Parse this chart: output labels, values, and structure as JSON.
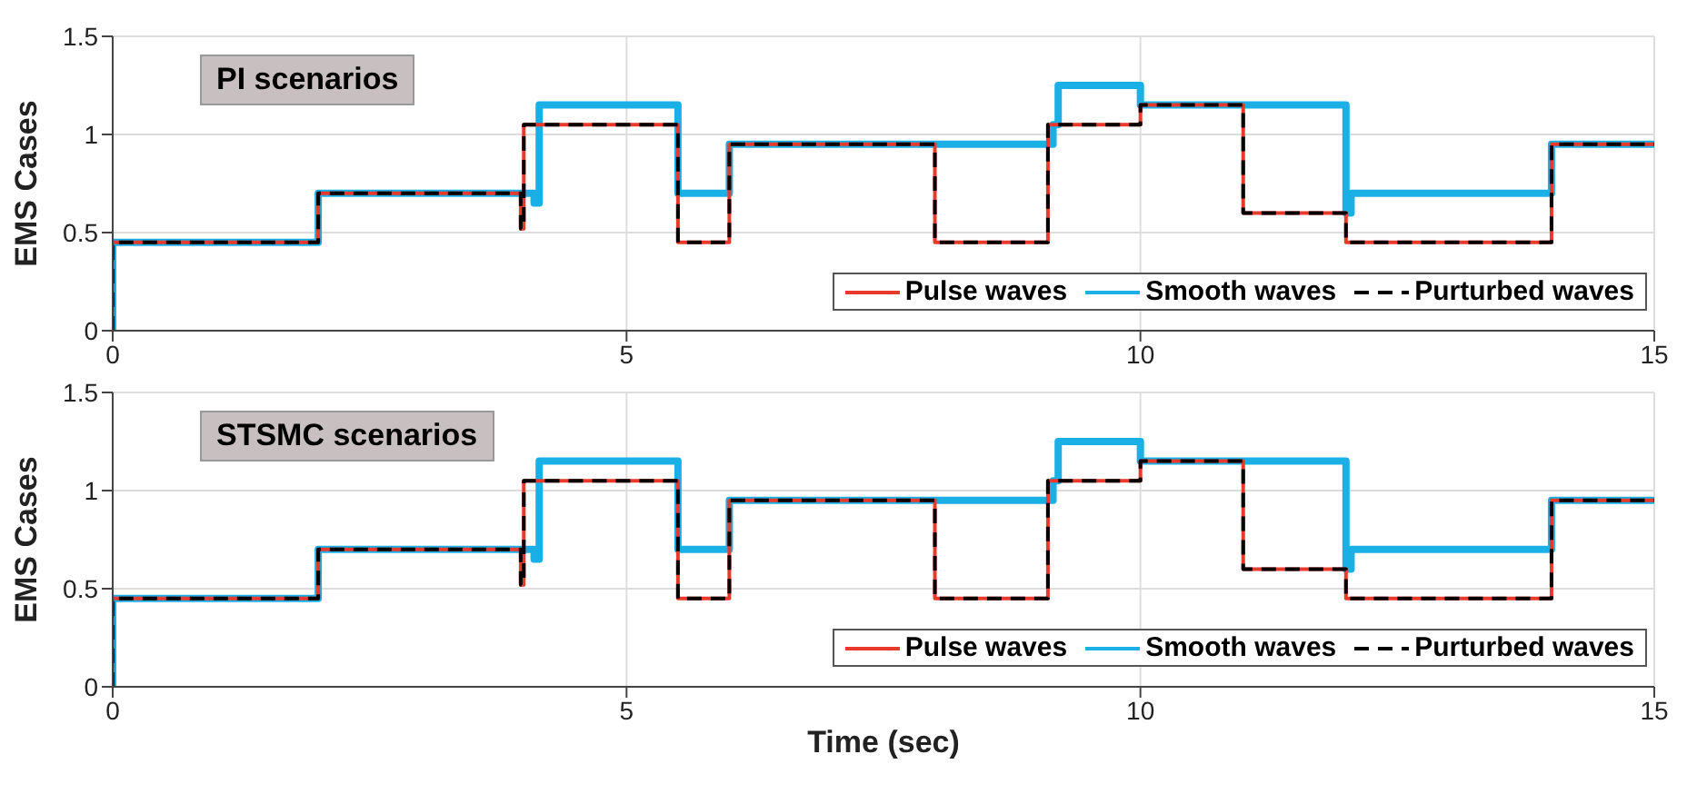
{
  "chart_data": [
    {
      "type": "step",
      "title": "PI scenarios",
      "ylabel": "EMS Cases",
      "xlim": [
        0,
        15
      ],
      "xticks": [
        0,
        5,
        10,
        15
      ],
      "ylim": [
        0,
        1.5
      ],
      "yticks": [
        0,
        0.5,
        1,
        1.5
      ],
      "grid": true,
      "legend": "bottom right",
      "series": [
        {
          "name": "Pulse waves",
          "color": "#e8392b",
          "x": [
            0,
            0,
            2,
            3.97,
            4,
            5.5,
            6,
            8,
            9.1,
            10,
            11,
            12,
            14,
            15
          ],
          "values": [
            0,
            0.45,
            0.7,
            0.52,
            1.05,
            0.45,
            0.95,
            0.45,
            1.05,
            1.15,
            0.6,
            0.45,
            0.95,
            0.95
          ]
        },
        {
          "name": "Smooth waves",
          "color": "#1ab0e6",
          "x": [
            0,
            0,
            2,
            4.1,
            4.15,
            5.5,
            6,
            9.15,
            9.2,
            10,
            12,
            12.05,
            14,
            15
          ],
          "values": [
            0,
            0.45,
            0.7,
            0.65,
            1.15,
            0.7,
            0.95,
            1.05,
            1.25,
            1.15,
            0.6,
            0.7,
            0.95,
            0.95
          ]
        },
        {
          "name": "Purturbed waves",
          "color": "#000000",
          "line_style": "dashed",
          "x": [
            0,
            0,
            2,
            3.97,
            4,
            5.5,
            6,
            8,
            9.1,
            10,
            11,
            12,
            14,
            15
          ],
          "values": [
            0,
            0.45,
            0.7,
            0.52,
            1.05,
            0.45,
            0.95,
            0.45,
            1.05,
            1.15,
            0.6,
            0.45,
            0.95,
            0.95
          ]
        }
      ]
    },
    {
      "type": "step",
      "title": "STSMC scenarios",
      "ylabel": "EMS Cases",
      "xlabel": "Time (sec)",
      "xlim": [
        0,
        15
      ],
      "xticks": [
        0,
        5,
        10,
        15
      ],
      "ylim": [
        0,
        1.5
      ],
      "yticks": [
        0,
        0.5,
        1,
        1.5
      ],
      "grid": true,
      "legend": "bottom right",
      "series": [
        {
          "name": "Pulse waves",
          "color": "#e8392b",
          "x": [
            0,
            0,
            2,
            3.97,
            4,
            5.5,
            6,
            8,
            9.1,
            10,
            11,
            12,
            14,
            15
          ],
          "values": [
            0,
            0.45,
            0.7,
            0.52,
            1.05,
            0.45,
            0.95,
            0.45,
            1.05,
            1.15,
            0.6,
            0.45,
            0.95,
            0.95
          ]
        },
        {
          "name": "Smooth waves",
          "color": "#1ab0e6",
          "x": [
            0,
            0,
            2,
            4.1,
            4.15,
            5.5,
            6,
            9.15,
            9.2,
            10,
            12,
            12.05,
            14,
            15
          ],
          "values": [
            0,
            0.45,
            0.7,
            0.65,
            1.15,
            0.7,
            0.95,
            1.05,
            1.25,
            1.15,
            0.6,
            0.7,
            0.95,
            0.95
          ]
        },
        {
          "name": "Purturbed waves",
          "color": "#000000",
          "line_style": "dashed",
          "x": [
            0,
            0,
            2,
            3.97,
            4,
            5.5,
            6,
            8,
            9.1,
            10,
            11,
            12,
            14,
            15
          ],
          "values": [
            0,
            0.45,
            0.7,
            0.52,
            1.05,
            0.45,
            0.95,
            0.45,
            1.05,
            1.15,
            0.6,
            0.45,
            0.95,
            0.95
          ]
        }
      ]
    }
  ]
}
